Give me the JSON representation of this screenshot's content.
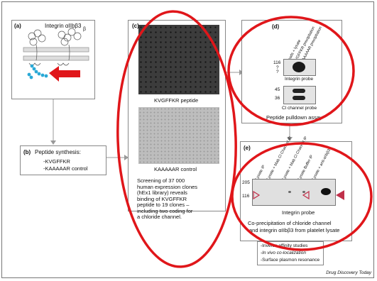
{
  "panel_a": {
    "label": "(a)",
    "title": "Integrin αIIbβ3",
    "beta_label": "β"
  },
  "panel_b": {
    "label": "(b)",
    "title": "Peptide synthesis:",
    "items": [
      "-KVGFFKR",
      "-KAAAAAR control"
    ]
  },
  "panel_c": {
    "label": "(c)",
    "image1_caption": "KVGFFKR peptide",
    "image2_caption": "KAAAAAR control",
    "description": [
      "Screening of 37 000",
      "human expression clones",
      "(hEx1 library) reveals",
      "binding of KVGFFKR",
      "peptide to 19 clones –",
      "including two coding for",
      "a chloride channel."
    ]
  },
  "panel_d": {
    "label": "(d)",
    "lanes": [
      "Beads + lysate",
      "KVGFFKR precipitation",
      "KAAAAAR precipitation"
    ],
    "blot1_markers": [
      "116",
      "?",
      "?"
    ],
    "blot1_caption": "Integrin probe",
    "blot2_markers": [
      "45",
      "36"
    ],
    "blot2_caption": "Cl channel probe",
    "caption": "Peptide pulldown assay"
  },
  "panel_e": {
    "label": "(e)",
    "lanes": [
      "Lysate IP",
      "Lysate + Mab Cl Channel IP",
      "Lysate + Mab Cl Channel IP",
      "Lysate Buffer IP",
      "Lysate + anti-αIIbβ3"
    ],
    "markers": [
      "205",
      "116"
    ],
    "probe_caption": "Integrin probe",
    "caption_line1": "Co-precipitation of chloride channel",
    "caption_line2": "and integrin αIIbβ3 from platelet lysate"
  },
  "panel_f": {
    "items": [
      "-Inverse affinity studies",
      "-In vivo co-localization",
      "-Surface plasmon resonance"
    ]
  },
  "footer": {
    "credit": "Drug Discovery Today"
  },
  "colors": {
    "highlight": "#e0161a",
    "arrow": "#e0161a",
    "helix": "#2aa9d6",
    "marker_arrow": "#c0304a"
  }
}
